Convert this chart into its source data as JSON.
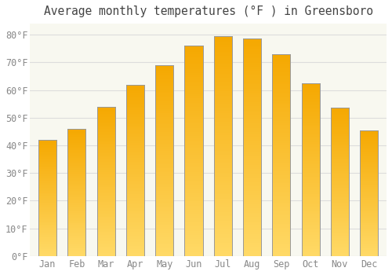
{
  "title": "Average monthly temperatures (°F ) in Greensboro",
  "months": [
    "Jan",
    "Feb",
    "Mar",
    "Apr",
    "May",
    "Jun",
    "Jul",
    "Aug",
    "Sep",
    "Oct",
    "Nov",
    "Dec"
  ],
  "values": [
    42,
    46,
    54,
    62,
    69,
    76,
    79.5,
    78.5,
    73,
    62.5,
    53.5,
    45.5
  ],
  "bar_color_bottom": "#FFD966",
  "bar_color_top": "#F5A800",
  "bar_edge_color": "#999999",
  "ylim": [
    0,
    84
  ],
  "yticks": [
    0,
    10,
    20,
    30,
    40,
    50,
    60,
    70,
    80
  ],
  "ytick_labels": [
    "0°F",
    "10°F",
    "20°F",
    "30°F",
    "40°F",
    "50°F",
    "60°F",
    "70°F",
    "80°F"
  ],
  "background_color": "#ffffff",
  "plot_bg_color": "#f8f8f0",
  "grid_color": "#dddddd",
  "title_fontsize": 10.5,
  "tick_fontsize": 8.5,
  "font_family": "monospace",
  "tick_color": "#888888",
  "figsize": [
    5.0,
    3.5
  ],
  "dpi": 100
}
